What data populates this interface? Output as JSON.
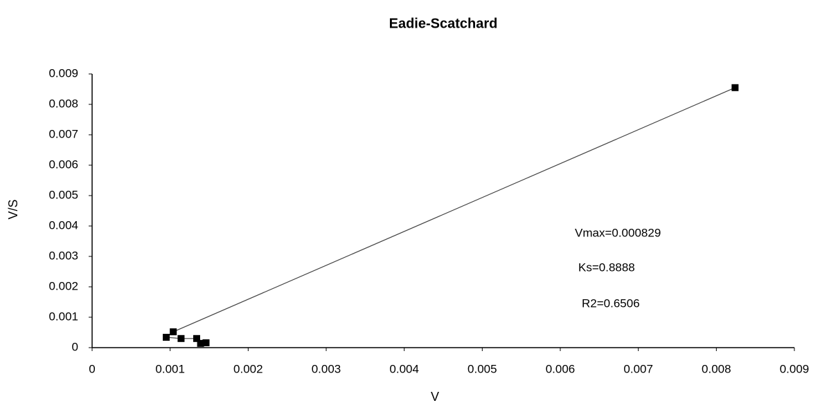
{
  "chart_data": {
    "type": "scatter",
    "title": "Eadie-Scatchard",
    "xlabel": "V",
    "ylabel": "V/S",
    "series": [
      {
        "color": "#000000",
        "x": [
          0.00146,
          0.00139,
          0.00134,
          0.00114,
          0.00095,
          0.00104,
          0.00824
        ],
        "values": [
          0.00016,
          0.00014,
          0.0003,
          0.0003,
          0.00034,
          0.00052,
          0.00855
        ]
      }
    ],
    "xlim": [
      0,
      0.009
    ],
    "xticks": [
      0,
      0.001,
      0.002,
      0.003,
      0.004,
      0.005,
      0.006,
      0.007,
      0.008,
      0.009
    ],
    "ylim": [
      0,
      0.009
    ],
    "yticks": [
      0,
      0.001,
      0.002,
      0.003,
      0.004,
      0.005,
      0.006,
      0.007,
      0.008,
      0.009
    ],
    "grid": false,
    "annotations": [
      "Vmax=0.000829",
      "Ks=0.8888",
      "R2=0.6506"
    ]
  }
}
